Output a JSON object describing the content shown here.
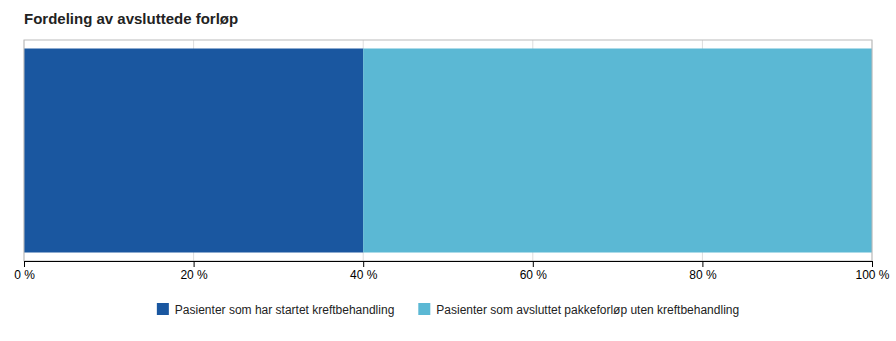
{
  "chart_data": {
    "type": "bar",
    "title": "Fordeling av avsluttede forløp",
    "orientation": "horizontal",
    "stacked": true,
    "categories": [
      null
    ],
    "series": [
      {
        "name": "Pasienter som har startet kreftbehandling",
        "color": "#1A57A0",
        "values": [
          40
        ]
      },
      {
        "name": "Pasienter som avsluttet pakkeforløp uten kreftbehandling",
        "color": "#5BB8D4",
        "values": [
          60
        ]
      }
    ],
    "xlim": [
      0,
      100
    ],
    "xticks": [
      {
        "value": 0,
        "label": "0 %"
      },
      {
        "value": 20,
        "label": "20 %"
      },
      {
        "value": 40,
        "label": "40 %"
      },
      {
        "value": 60,
        "label": "60 %"
      },
      {
        "value": 80,
        "label": "80 %"
      },
      {
        "value": 100,
        "label": "100 %"
      }
    ],
    "grid": true,
    "legend": "bottom",
    "tick_labels": "x"
  }
}
